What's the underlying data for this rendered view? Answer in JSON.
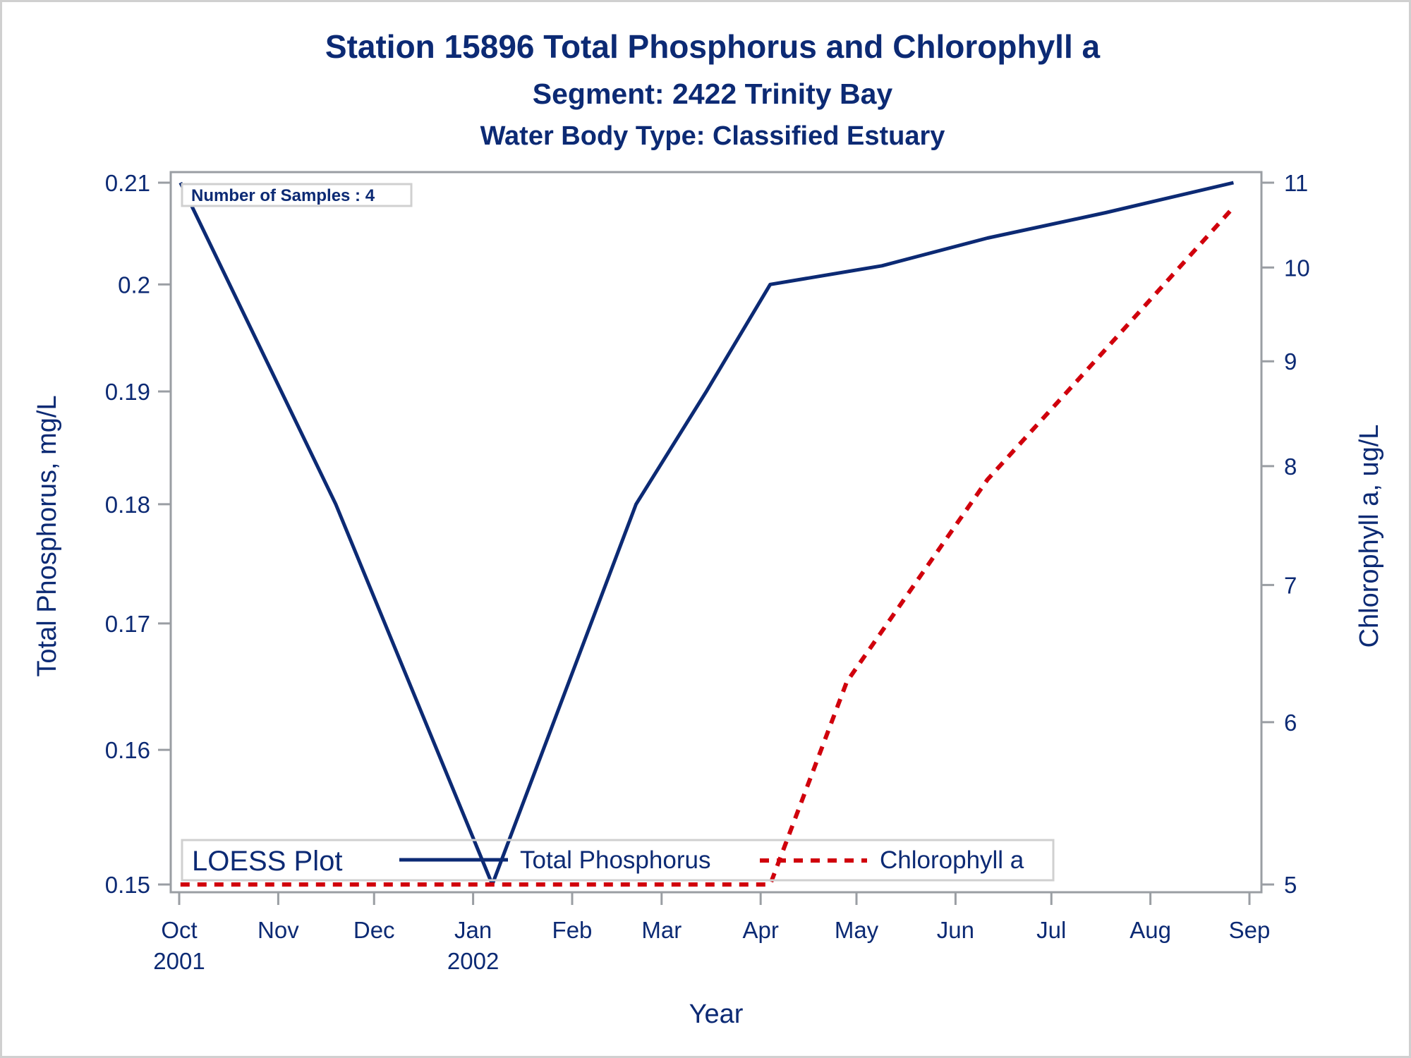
{
  "titles": {
    "line1": "Station 15896   Total Phosphorus and Chlorophyll a",
    "line2": "Segment: 2422  Trinity Bay",
    "line3": "Water Body Type: Classified Estuary"
  },
  "inset": {
    "samples_label": "Number of Samples : 4"
  },
  "legend": {
    "title": "LOESS Plot",
    "items": [
      {
        "label": "Total Phosphorus",
        "style": "solid"
      },
      {
        "label": "Chlorophyll a",
        "style": "dashed"
      }
    ]
  },
  "colors": {
    "text": "#0c2a74",
    "total_phosphorus": "#0c2a74",
    "chlorophyll": "#d0000c",
    "axis": "#9a9ea3",
    "border": "#d0d0d0"
  },
  "chart_data": {
    "type": "line",
    "title": "Station 15896   Total Phosphorus and Chlorophyll a",
    "subtitle": [
      "Segment: 2422  Trinity Bay",
      "Water Body Type: Classified Estuary"
    ],
    "xlabel": "Year",
    "ylabel": "Total Phosphorus, mg/L",
    "y2label": "Chlorophyll a, ug/L",
    "x_unit": "days since 2001-10-01",
    "xlim": [
      -2.6,
      339
    ],
    "x_ticks": [
      {
        "day": 0,
        "label": [
          "Oct",
          "2001"
        ]
      },
      {
        "day": 31,
        "label": [
          "Nov",
          ""
        ]
      },
      {
        "day": 61,
        "label": [
          "Dec",
          ""
        ]
      },
      {
        "day": 92,
        "label": [
          "Jan",
          "2002"
        ]
      },
      {
        "day": 123,
        "label": [
          "Feb",
          ""
        ]
      },
      {
        "day": 151,
        "label": [
          "Mar",
          ""
        ]
      },
      {
        "day": 182,
        "label": [
          "Apr",
          ""
        ]
      },
      {
        "day": 212,
        "label": [
          "May",
          ""
        ]
      },
      {
        "day": 243,
        "label": [
          "Jun",
          ""
        ]
      },
      {
        "day": 273,
        "label": [
          "Jul",
          ""
        ]
      },
      {
        "day": 304,
        "label": [
          "Aug",
          ""
        ]
      },
      {
        "day": 335,
        "label": [
          "Sep",
          ""
        ]
      }
    ],
    "y_scale": "log",
    "ylim": [
      0.15,
      0.21
    ],
    "y_ticks": [
      0.15,
      0.16,
      0.17,
      0.18,
      0.19,
      0.2,
      0.21
    ],
    "y_tick_labels": [
      "0.15",
      "0.16",
      "0.17",
      "0.18",
      "0.19",
      "0.2",
      "0.21"
    ],
    "y2_scale": "log",
    "y2lim": [
      5,
      11
    ],
    "y2_ticks": [
      5,
      6,
      7,
      8,
      9,
      10,
      11
    ],
    "y2_tick_labels": [
      "5",
      "6",
      "7",
      "8",
      "9",
      "10",
      "11"
    ],
    "grid": false,
    "legend_position": "bottom-inside",
    "series": [
      {
        "name": "Total Phosphorus",
        "axis": "left",
        "x": [
          0.4,
          49,
          98,
          143,
          165,
          185,
          220,
          253,
          290,
          330
        ],
        "y": [
          0.21,
          0.18,
          0.15,
          0.18,
          0.19,
          0.2,
          0.2018,
          0.2045,
          0.207,
          0.21
        ]
      },
      {
        "name": "Chlorophyll a",
        "axis": "right",
        "x": [
          0.4,
          100,
          185,
          209,
          253,
          288,
          330
        ],
        "y": [
          5,
          5,
          5,
          6.28,
          7.88,
          9.05,
          10.7
        ]
      }
    ]
  }
}
